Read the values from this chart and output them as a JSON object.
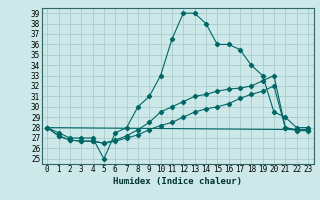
{
  "xlabel": "Humidex (Indice chaleur)",
  "ylabel": "",
  "bg_color": "#cce8e8",
  "grid_color": "#aacccc",
  "line_color": "#006666",
  "marker_color": "#006666",
  "xlim": [
    -0.5,
    23.5
  ],
  "ylim": [
    24.5,
    39.5
  ],
  "yticks": [
    25,
    26,
    27,
    28,
    29,
    30,
    31,
    32,
    33,
    34,
    35,
    36,
    37,
    38,
    39
  ],
  "xticks": [
    0,
    1,
    2,
    3,
    4,
    5,
    6,
    7,
    8,
    9,
    10,
    11,
    12,
    13,
    14,
    15,
    16,
    17,
    18,
    19,
    20,
    21,
    22,
    23
  ],
  "xtick_labels": [
    "0",
    "1",
    "2",
    "3",
    "4",
    "5",
    "6",
    "7",
    "8",
    "9",
    "10",
    "11",
    "12",
    "13",
    "14",
    "15",
    "16",
    "17",
    "18",
    "19",
    "20",
    "21",
    "22",
    "23"
  ],
  "lines": [
    {
      "x": [
        0,
        1,
        2,
        3,
        4,
        5,
        6,
        7,
        8,
        9,
        10,
        11,
        12,
        13,
        14,
        15,
        16,
        17,
        18,
        19,
        20,
        21,
        22,
        23
      ],
      "y": [
        28,
        27.5,
        27,
        27,
        27,
        25,
        27.5,
        28,
        30,
        31,
        33,
        36.5,
        39,
        39,
        38,
        36,
        36,
        35.5,
        34,
        33,
        29.5,
        29,
        28,
        28
      ]
    },
    {
      "x": [
        0,
        1,
        2,
        3,
        4,
        5,
        6,
        7,
        8,
        9,
        10,
        11,
        12,
        13,
        14,
        15,
        16,
        17,
        18,
        19,
        20,
        21,
        22,
        23
      ],
      "y": [
        28,
        27.2,
        26.8,
        26.7,
        26.7,
        26.5,
        26.8,
        27.2,
        27.8,
        28.5,
        29.5,
        30,
        30.5,
        31,
        31.2,
        31.5,
        31.7,
        31.8,
        32,
        32.5,
        33,
        28,
        27.8,
        27.8
      ]
    },
    {
      "x": [
        0,
        1,
        2,
        3,
        4,
        5,
        6,
        7,
        8,
        9,
        10,
        11,
        12,
        13,
        14,
        15,
        16,
        17,
        18,
        19,
        20,
        21,
        22,
        23
      ],
      "y": [
        28,
        27.2,
        26.8,
        26.7,
        26.7,
        26.5,
        26.7,
        27.0,
        27.3,
        27.8,
        28.2,
        28.5,
        29,
        29.5,
        29.8,
        30,
        30.3,
        30.8,
        31.2,
        31.5,
        32,
        28,
        27.7,
        27.7
      ]
    },
    {
      "x": [
        0,
        23
      ],
      "y": [
        28,
        27.8
      ]
    }
  ]
}
